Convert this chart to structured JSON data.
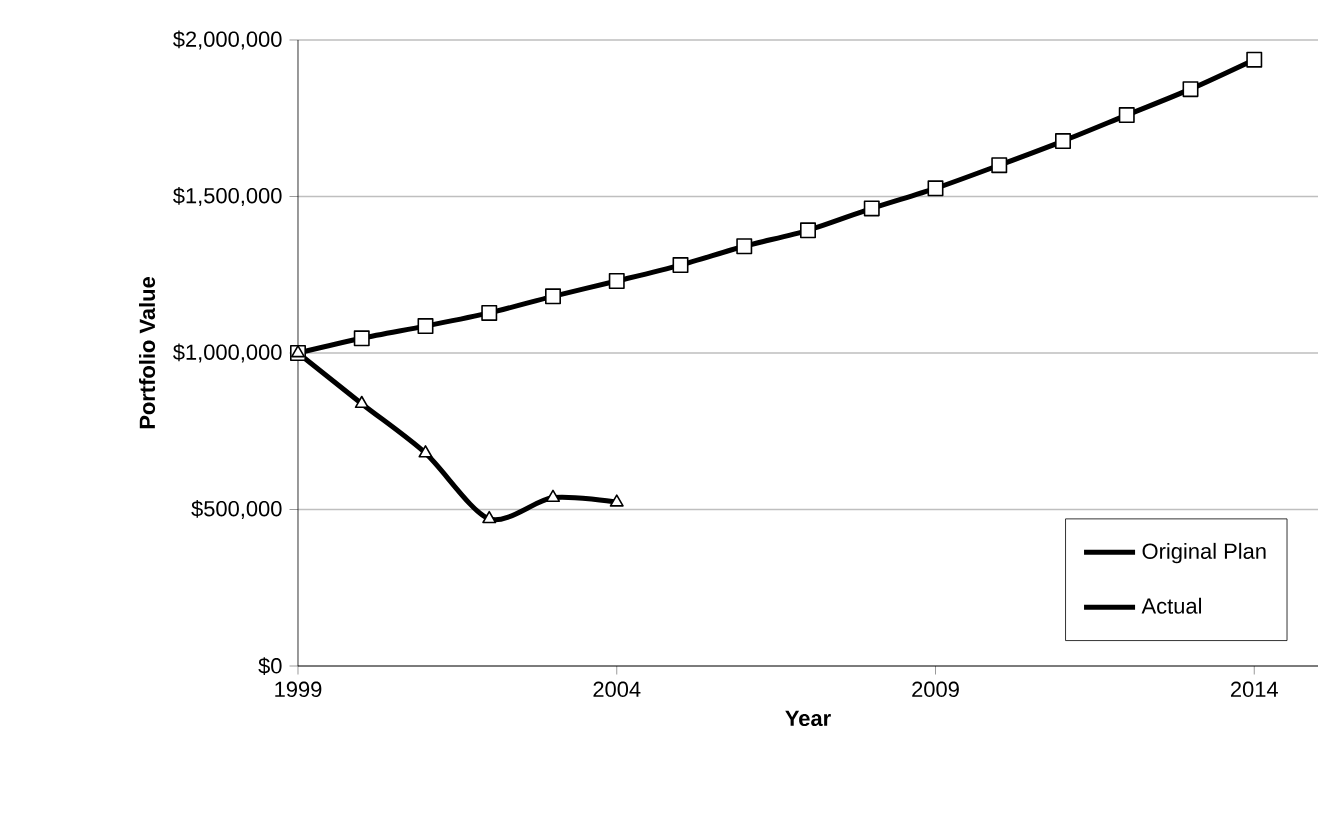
{
  "chart_data": {
    "type": "line",
    "xlabel": "Year",
    "ylabel": "Portfolio Value",
    "x": [
      1999,
      2000,
      2001,
      2002,
      2003,
      2004,
      2005,
      2006,
      2007,
      2008,
      2009,
      2010,
      2011,
      2012,
      2013,
      2014
    ],
    "series": [
      {
        "name": "Original Plan",
        "color": "#000000",
        "marker": "square",
        "values": [
          1000000,
          1047000,
          1086000,
          1128000,
          1181000,
          1230000,
          1281000,
          1341000,
          1392000,
          1462000,
          1526000,
          1600000,
          1677000,
          1760000,
          1843000,
          1937000
        ]
      },
      {
        "name": "Actual",
        "color": "#000000",
        "marker": "triangle",
        "values": [
          1000000,
          838000,
          680000,
          470000,
          538000,
          523000,
          null,
          null,
          null,
          null,
          null,
          null,
          null,
          null,
          null,
          null
        ]
      }
    ],
    "xlim": [
      1999,
      2015
    ],
    "xticks": [
      1999,
      2004,
      2009,
      2014
    ],
    "ylim": [
      0,
      2000000
    ],
    "yticks": [
      {
        "value": 0,
        "label": "$0"
      },
      {
        "value": 500000,
        "label": "$500,000"
      },
      {
        "value": 1000000,
        "label": "$1,000,000"
      },
      {
        "value": 1500000,
        "label": "$1,500,000"
      },
      {
        "value": 2000000,
        "label": "$2,000,000"
      }
    ],
    "grid": "y",
    "legend": "bottom right",
    "line_style": "solid"
  }
}
